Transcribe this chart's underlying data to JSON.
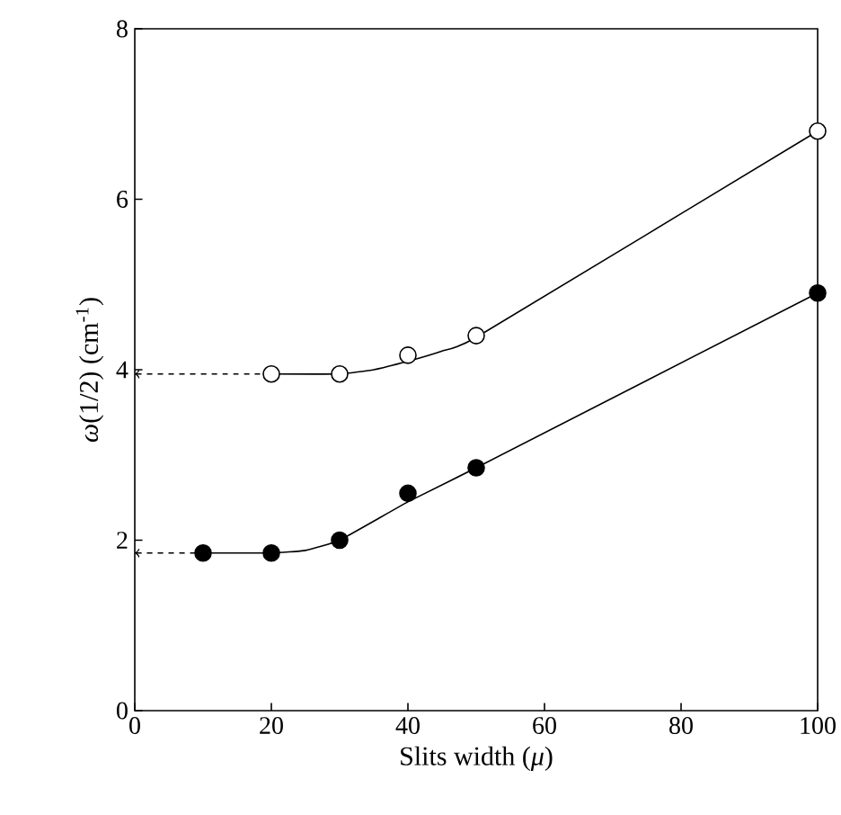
{
  "chart_data": {
    "type": "line",
    "xlabel": "Slits width (*μ*)",
    "ylabel": "*ω*(1/2)  (cm$^{-1}$)",
    "xlim": [
      0,
      100
    ],
    "ylim": [
      0,
      8
    ],
    "xticks": [
      0,
      20,
      40,
      60,
      80,
      100
    ],
    "yticks": [
      0,
      2,
      4,
      6,
      8
    ],
    "grid": false,
    "line_style": "solid",
    "series": [
      {
        "color": "#000000",
        "x": [
          20,
          30,
          35,
          40,
          45,
          50,
          100
        ],
        "values": [
          3.95,
          3.95,
          4.0,
          4.1,
          4.22,
          4.38,
          6.8
        ]
      },
      {
        "color": "#000000",
        "x": [
          10,
          20,
          25,
          30,
          40,
          50,
          100
        ],
        "values": [
          1.85,
          1.85,
          1.88,
          2.0,
          2.45,
          2.85,
          4.9
        ]
      },
      {
        "type": "scatter",
        "color": "#ffffff",
        "marker": "circle",
        "x": [
          20,
          30,
          40,
          50,
          100
        ],
        "values": [
          3.95,
          3.95,
          4.17,
          4.4,
          6.8
        ]
      },
      {
        "type": "scatter",
        "color": "#000000",
        "marker": "circle",
        "x": [
          10,
          20,
          30,
          40,
          50,
          100
        ],
        "values": [
          1.85,
          1.85,
          2.0,
          2.55,
          2.85,
          4.9
        ]
      },
      {
        "color": "#000000",
        "line_style": "dashed",
        "x": [
          0,
          20
        ],
        "values": [
          3.95,
          3.95
        ]
      },
      {
        "color": "#000000",
        "line_style": "dashed",
        "x": [
          0,
          10
        ],
        "values": [
          1.85,
          1.85
        ]
      }
    ]
  }
}
